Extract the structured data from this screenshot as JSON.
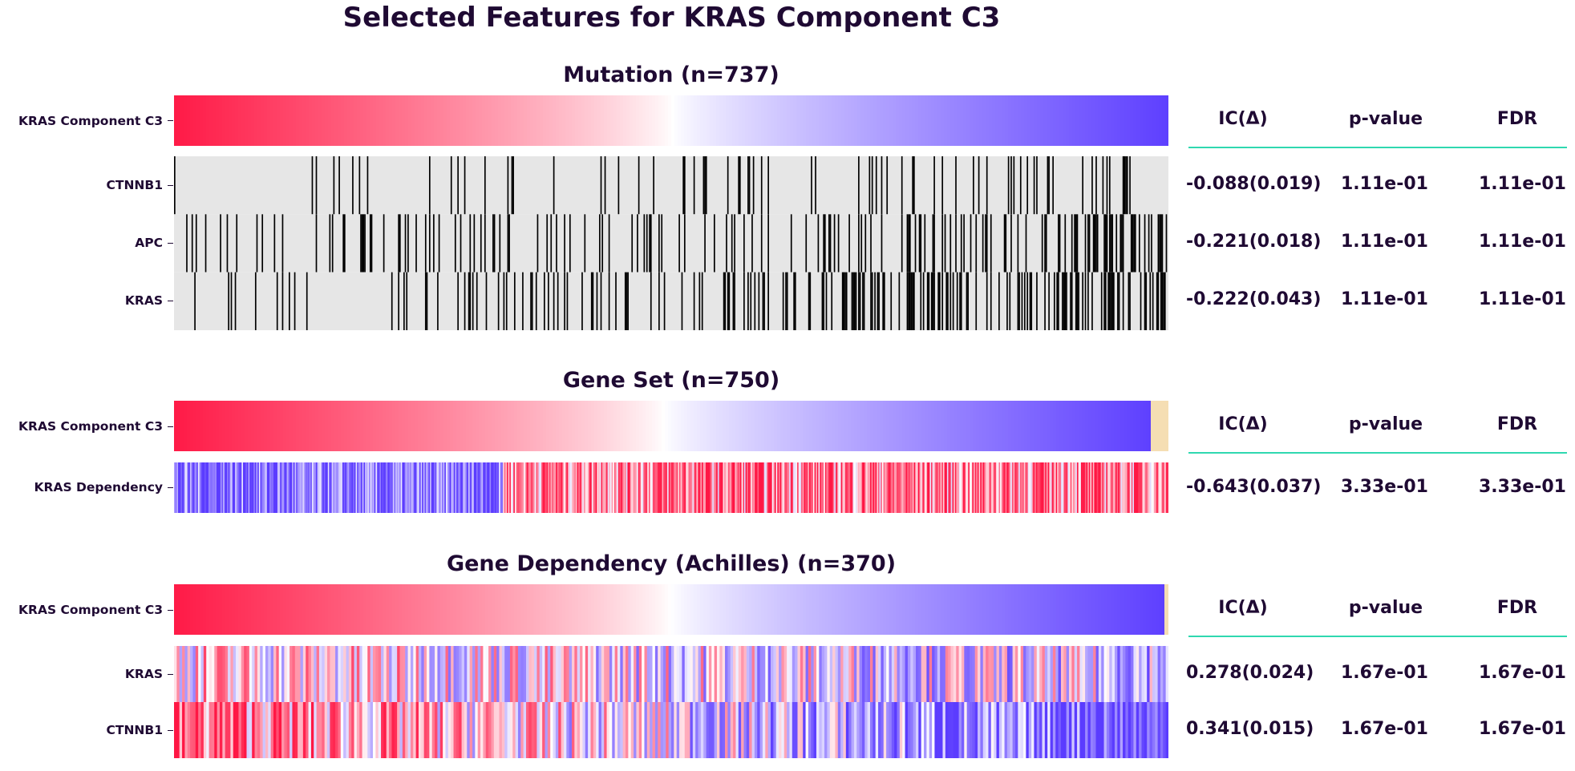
{
  "title": "Selected Features for KRAS Component C3",
  "colors": {
    "text": "#1f0a33",
    "high": "#ff1744",
    "low": "#5b3cff",
    "mid": "#ffffff",
    "na": "#f5deb3",
    "mutation_background": "#e6e6e6",
    "mutation_present": "#000000",
    "header_rule": "#2fd8b0"
  },
  "stat_headers": [
    "IC(Δ)",
    "p-value",
    "FDR"
  ],
  "chart_data": [
    {
      "type": "heatmap",
      "title": "Mutation (n=737)",
      "n": 737,
      "target": {
        "name": "KRAS Component C3",
        "scale": "continuous",
        "na_fraction": 0
      },
      "value_kind": "binary",
      "features": [
        {
          "name": "CTNNB1",
          "ic": "-0.088(0.019)",
          "p_value": "1.11e-01",
          "fdr": "1.11e-01",
          "approx_mutation_rate": 0.1,
          "trend": "more mutations in low-score (right) samples"
        },
        {
          "name": "APC",
          "ic": "-0.221(0.018)",
          "p_value": "1.11e-01",
          "fdr": "1.11e-01",
          "approx_mutation_rate": 0.18,
          "trend": "more mutations in low-score (right) samples"
        },
        {
          "name": "KRAS",
          "ic": "-0.222(0.043)",
          "p_value": "1.11e-01",
          "fdr": "1.11e-01",
          "approx_mutation_rate": 0.25,
          "trend": "more mutations in middle/right samples"
        }
      ]
    },
    {
      "type": "heatmap",
      "title": "Gene Set (n=750)",
      "n": 750,
      "target": {
        "name": "KRAS Component C3",
        "scale": "continuous",
        "na_fraction": 0.018
      },
      "value_kind": "continuous",
      "features": [
        {
          "name": "KRAS Dependency",
          "ic": "-0.643(0.037)",
          "p_value": "3.33e-01",
          "fdr": "3.33e-01",
          "trend": "low (blue) on left, high (red) on right"
        }
      ]
    },
    {
      "type": "heatmap",
      "title": "Gene Dependency (Achilles) (n=370)",
      "n": 370,
      "target": {
        "name": "KRAS Component C3",
        "scale": "continuous",
        "na_fraction": 0.004
      },
      "value_kind": "continuous",
      "features": [
        {
          "name": "KRAS",
          "ic": "0.278(0.024)",
          "p_value": "1.67e-01",
          "fdr": "1.67e-01",
          "trend": "mixed, slightly more blue on right"
        },
        {
          "name": "CTNNB1",
          "ic": "0.341(0.015)",
          "p_value": "1.67e-01",
          "fdr": "1.67e-01",
          "trend": "red on left, blue on right"
        }
      ]
    }
  ]
}
